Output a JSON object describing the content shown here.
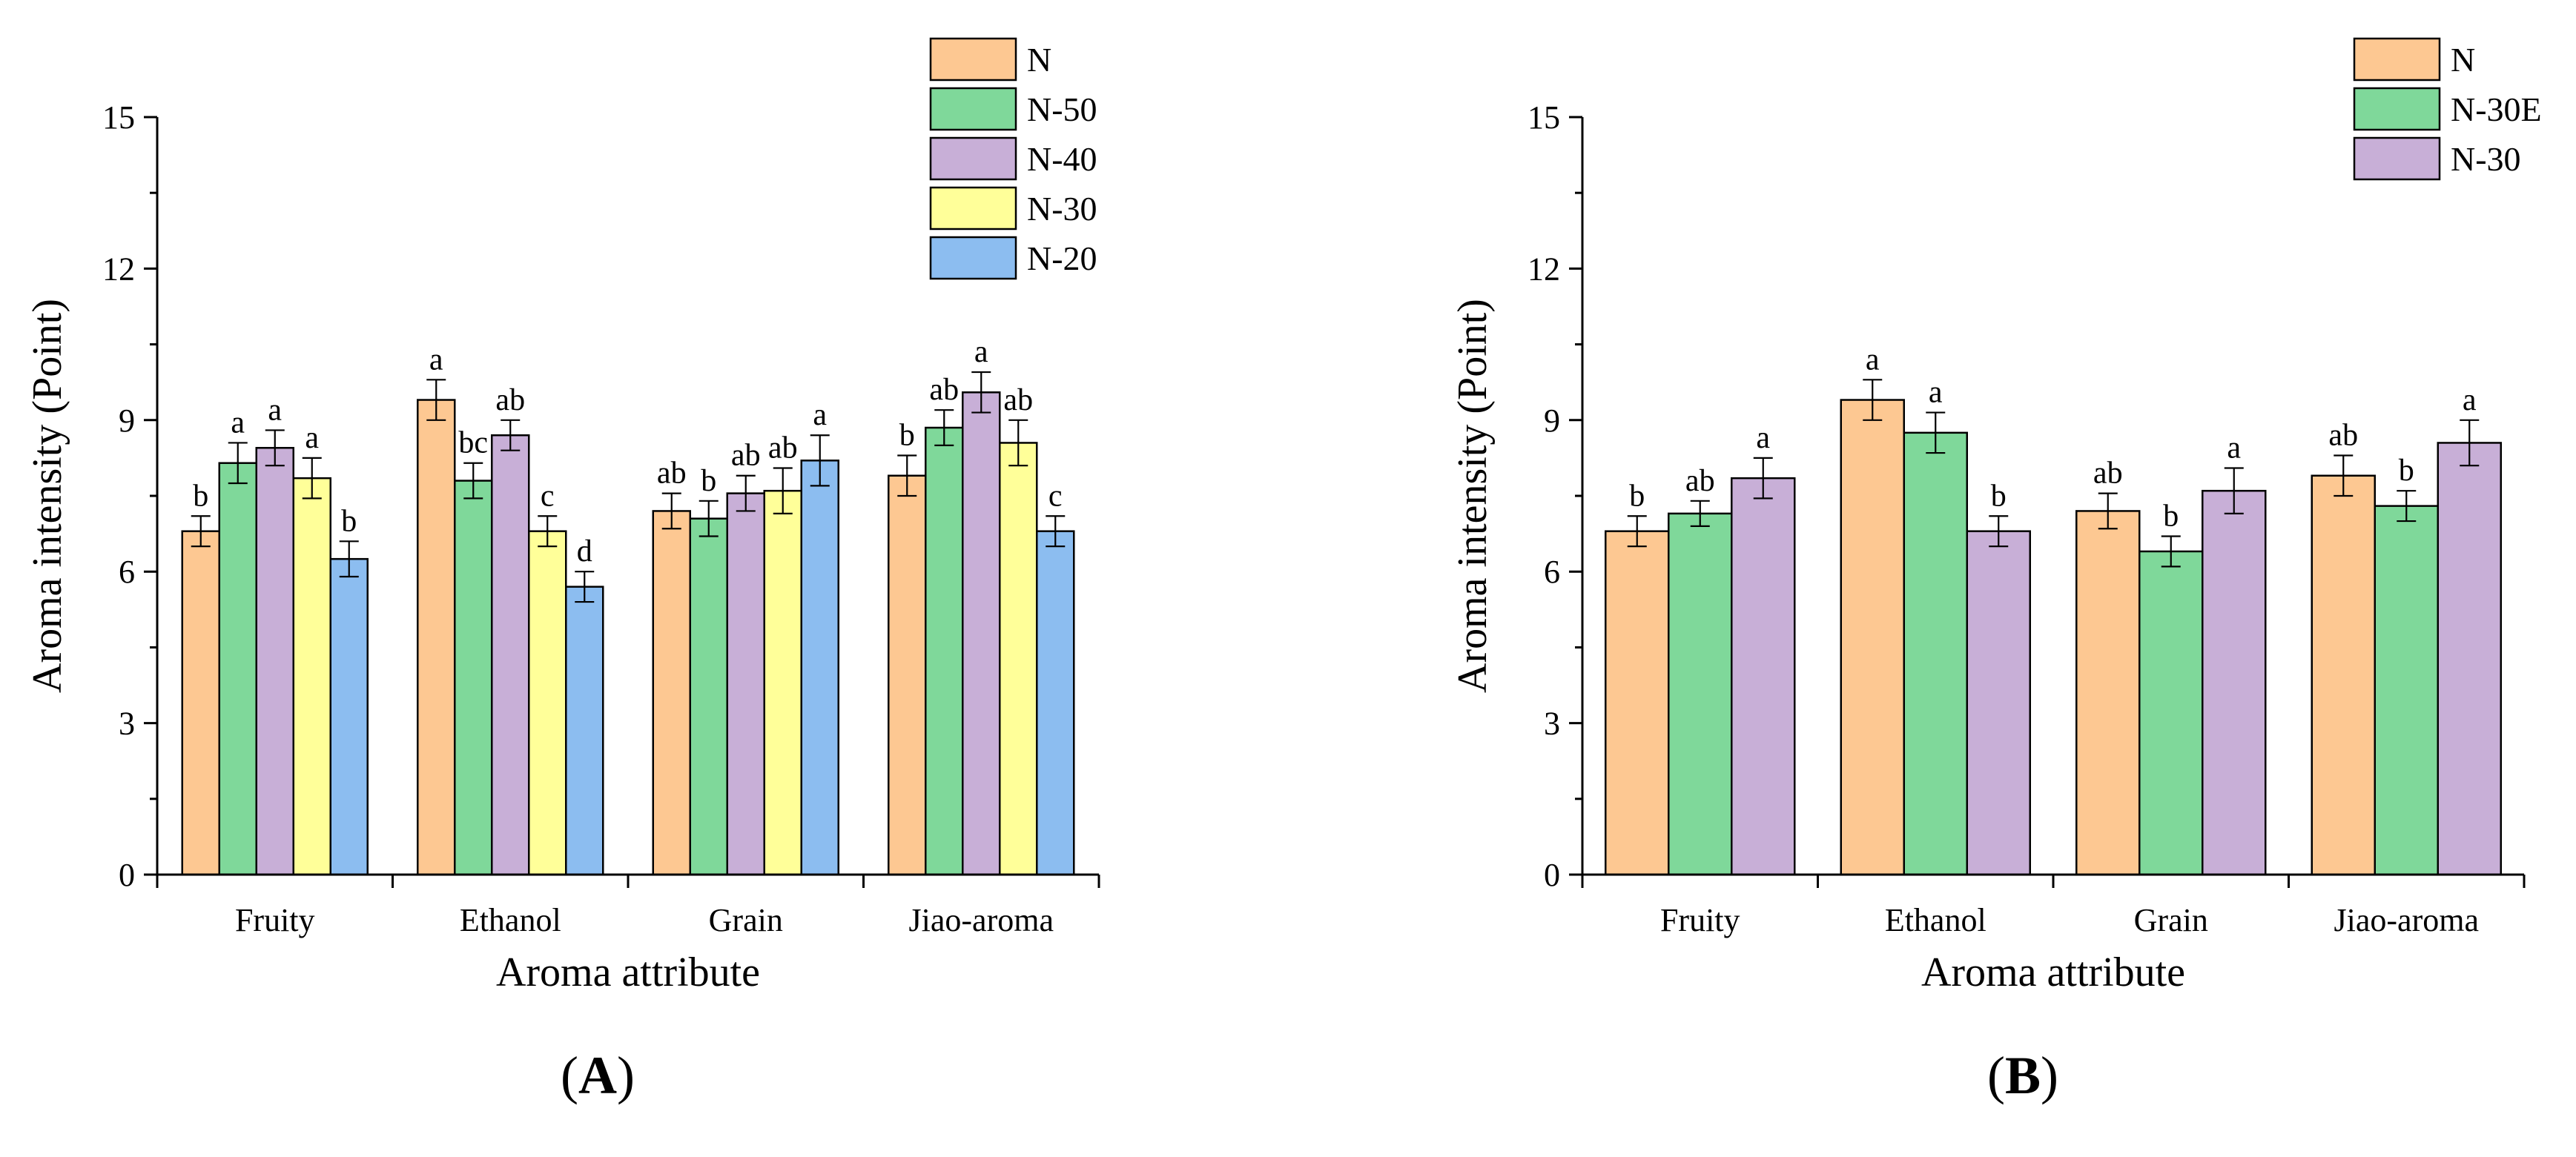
{
  "chart_data": [
    {
      "panel_label": "(A)",
      "type": "bar",
      "xlabel": "Aroma attribute",
      "ylabel": "Aroma intensity (Point)",
      "ylim": [
        0,
        15
      ],
      "yticks": [
        0,
        3,
        6,
        9,
        12,
        15
      ],
      "categories": [
        "Fruity",
        "Ethanol",
        "Grain",
        "Jiao-aroma"
      ],
      "legend_position": "top-right",
      "series": [
        {
          "name": "N",
          "color": "#FDC892",
          "values": [
            6.8,
            9.4,
            7.2,
            7.9
          ],
          "errors": [
            0.3,
            0.4,
            0.35,
            0.4
          ],
          "letters": [
            "b",
            "a",
            "ab",
            "b"
          ]
        },
        {
          "name": "N-50",
          "color": "#7FD89A",
          "values": [
            8.15,
            7.8,
            7.05,
            8.85
          ],
          "errors": [
            0.4,
            0.35,
            0.35,
            0.35
          ],
          "letters": [
            "a",
            "bc",
            "b",
            "ab"
          ]
        },
        {
          "name": "N-40",
          "color": "#C8AFD7",
          "values": [
            8.45,
            8.7,
            7.55,
            9.55
          ],
          "errors": [
            0.35,
            0.3,
            0.35,
            0.4
          ],
          "letters": [
            "a",
            "ab",
            "ab",
            "a"
          ]
        },
        {
          "name": "N-30",
          "color": "#FFFF99",
          "values": [
            7.85,
            6.8,
            7.6,
            8.55
          ],
          "errors": [
            0.4,
            0.3,
            0.45,
            0.45
          ],
          "letters": [
            "a",
            "c",
            "ab",
            "ab"
          ]
        },
        {
          "name": "N-20",
          "color": "#8CBDF0",
          "values": [
            6.25,
            5.7,
            8.2,
            6.8
          ],
          "errors": [
            0.35,
            0.3,
            0.5,
            0.3
          ],
          "letters": [
            "b",
            "d",
            "a",
            "c"
          ]
        }
      ]
    },
    {
      "panel_label": "(B)",
      "type": "bar",
      "xlabel": "Aroma attribute",
      "ylabel": "Aroma intensity (Point)",
      "ylim": [
        0,
        15
      ],
      "yticks": [
        0,
        3,
        6,
        9,
        12,
        15
      ],
      "categories": [
        "Fruity",
        "Ethanol",
        "Grain",
        "Jiao-aroma"
      ],
      "legend_position": "top-right",
      "series": [
        {
          "name": "N",
          "color": "#FDC892",
          "values": [
            6.8,
            9.4,
            7.2,
            7.9
          ],
          "errors": [
            0.3,
            0.4,
            0.35,
            0.4
          ],
          "letters": [
            "b",
            "a",
            "ab",
            "ab"
          ]
        },
        {
          "name": "N-30E",
          "color": "#7FD89A",
          "values": [
            7.15,
            8.75,
            6.4,
            7.3
          ],
          "errors": [
            0.25,
            0.4,
            0.3,
            0.3
          ],
          "letters": [
            "ab",
            "a",
            "b",
            "b"
          ]
        },
        {
          "name": "N-30",
          "color": "#C8AFD7",
          "values": [
            7.85,
            6.8,
            7.6,
            8.55
          ],
          "errors": [
            0.4,
            0.3,
            0.45,
            0.45
          ],
          "letters": [
            "a",
            "b",
            "a",
            "a"
          ]
        }
      ]
    }
  ]
}
